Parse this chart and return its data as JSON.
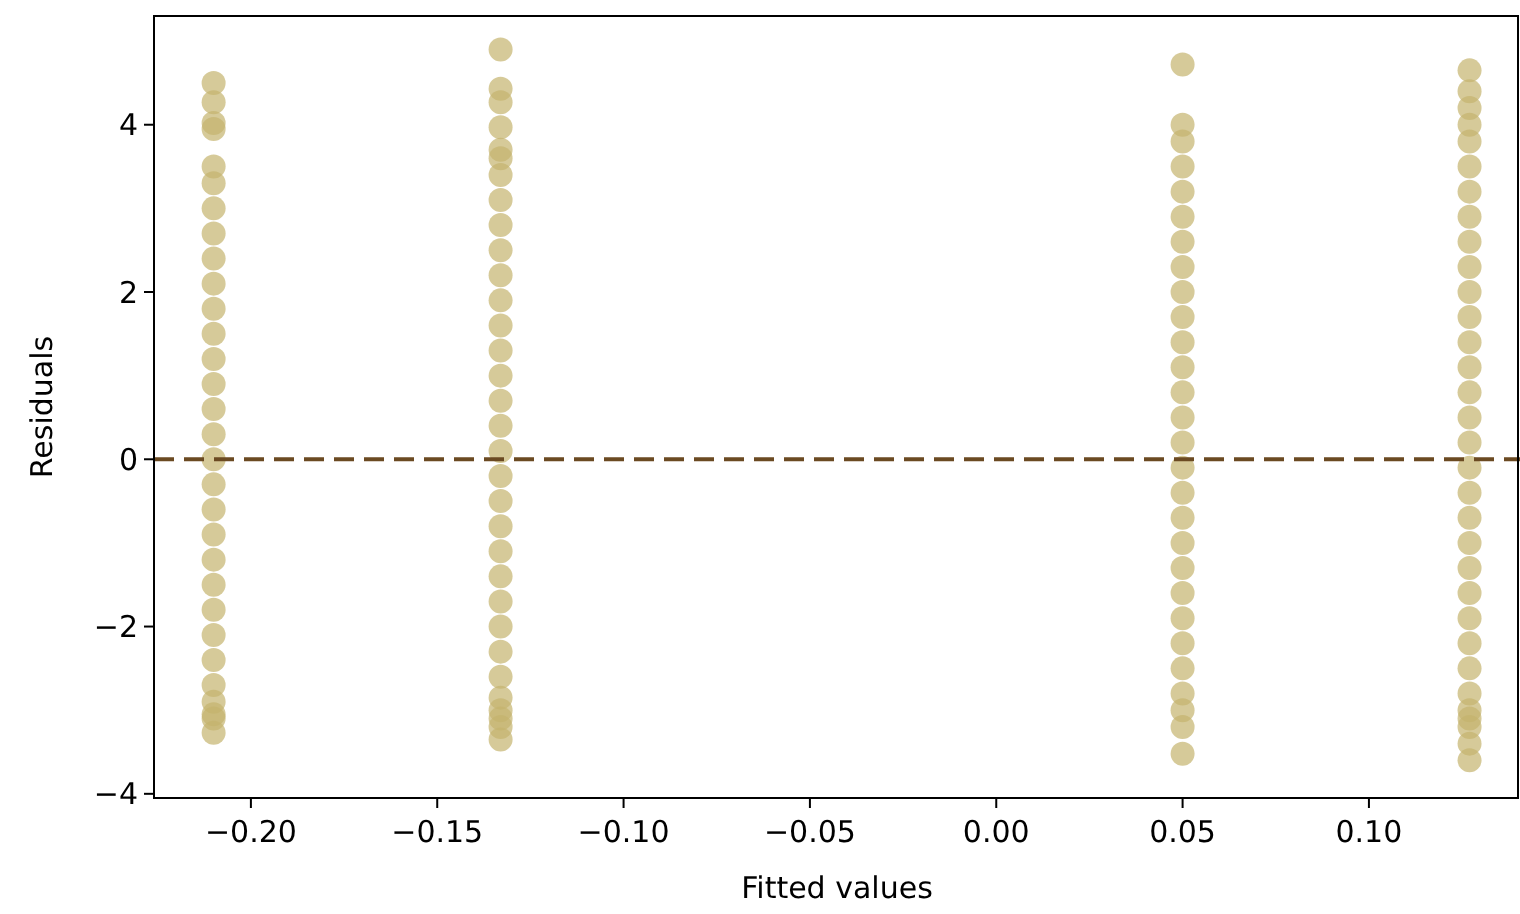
{
  "chart_data": {
    "type": "scatter",
    "xlabel": "Fitted values",
    "ylabel": "Residuals",
    "xlim": [
      -0.226,
      0.14
    ],
    "ylim": [
      -4.05,
      5.3
    ],
    "xticks": [
      {
        "value": -0.2,
        "label": "−0.20"
      },
      {
        "value": -0.15,
        "label": "−0.15"
      },
      {
        "value": -0.1,
        "label": "−0.10"
      },
      {
        "value": -0.05,
        "label": "−0.05"
      },
      {
        "value": 0,
        "label": "0.00"
      },
      {
        "value": 0.05,
        "label": "0.05"
      },
      {
        "value": 0.1,
        "label": "0.10"
      }
    ],
    "yticks": [
      {
        "value": -4,
        "label": "−4"
      },
      {
        "value": -2,
        "label": "−2"
      },
      0,
      2,
      4
    ],
    "grid": false,
    "marker": "circle",
    "ref_lines": [
      {
        "axis": "y",
        "value": 0,
        "color": "#6b4a22",
        "line_style": "dashed"
      }
    ],
    "series": [
      {
        "color": "#c5b46e",
        "x": [
          -0.21,
          -0.21,
          -0.21,
          -0.21,
          -0.21,
          -0.21,
          -0.21,
          -0.21,
          -0.21,
          -0.21,
          -0.21,
          -0.21,
          -0.21,
          -0.21,
          -0.21,
          -0.21,
          -0.21,
          -0.21,
          -0.21,
          -0.21,
          -0.21,
          -0.21,
          -0.21,
          -0.21,
          -0.21,
          -0.21,
          -0.21,
          -0.21,
          -0.21,
          -0.21,
          -0.133,
          -0.133,
          -0.133,
          -0.133,
          -0.133,
          -0.133,
          -0.133,
          -0.133,
          -0.133,
          -0.133,
          -0.133,
          -0.133,
          -0.133,
          -0.133,
          -0.133,
          -0.133,
          -0.133,
          -0.133,
          -0.133,
          -0.133,
          -0.133,
          -0.133,
          -0.133,
          -0.133,
          -0.133,
          -0.133,
          -0.133,
          -0.133,
          -0.133,
          -0.133,
          -0.133,
          -0.133,
          0.05,
          0.05,
          0.05,
          0.05,
          0.05,
          0.05,
          0.05,
          0.05,
          0.05,
          0.05,
          0.05,
          0.05,
          0.05,
          0.05,
          0.05,
          0.05,
          0.05,
          0.05,
          0.05,
          0.05,
          0.05,
          0.05,
          0.05,
          0.05,
          0.05,
          0.05,
          0.05,
          0.05,
          0.127,
          0.127,
          0.127,
          0.127,
          0.127,
          0.127,
          0.127,
          0.127,
          0.127,
          0.127,
          0.127,
          0.127,
          0.127,
          0.127,
          0.127,
          0.127,
          0.127,
          0.127,
          0.127,
          0.127,
          0.127,
          0.127,
          0.127,
          0.127,
          0.127,
          0.127,
          0.127,
          0.127,
          0.127,
          0.127,
          0.127,
          0.127
        ],
        "values": [
          4.5,
          4.27,
          4.02,
          3.95,
          3.5,
          3.3,
          3.0,
          2.7,
          2.4,
          2.1,
          1.8,
          1.5,
          1.2,
          0.9,
          0.6,
          0.3,
          0.0,
          -0.3,
          -0.6,
          -0.9,
          -1.2,
          -1.5,
          -1.8,
          -2.1,
          -2.4,
          -2.7,
          -2.9,
          -3.05,
          -3.1,
          -3.27,
          4.9,
          4.43,
          4.27,
          3.97,
          3.7,
          3.6,
          3.4,
          3.1,
          2.8,
          2.5,
          2.2,
          1.9,
          1.6,
          1.3,
          1.0,
          0.7,
          0.4,
          0.1,
          -0.2,
          -0.5,
          -0.8,
          -1.1,
          -1.4,
          -1.7,
          -2.0,
          -2.3,
          -2.6,
          -2.85,
          -3.0,
          -3.1,
          -3.2,
          -3.35,
          4.72,
          4.0,
          3.8,
          3.5,
          3.2,
          2.9,
          2.6,
          2.3,
          2.0,
          1.7,
          1.4,
          1.1,
          0.8,
          0.5,
          0.2,
          -0.1,
          -0.4,
          -0.7,
          -1.0,
          -1.3,
          -1.6,
          -1.9,
          -2.2,
          -2.5,
          -2.8,
          -3.0,
          -3.2,
          -3.52,
          4.65,
          4.4,
          4.2,
          4.0,
          3.8,
          3.5,
          3.2,
          2.9,
          2.6,
          2.3,
          2.0,
          1.7,
          1.4,
          1.1,
          0.8,
          0.5,
          0.2,
          -0.1,
          -0.4,
          -0.7,
          -1.0,
          -1.3,
          -1.6,
          -1.9,
          -2.2,
          -2.5,
          -2.8,
          -3.0,
          -3.1,
          -3.2,
          -3.4,
          -3.6
        ]
      }
    ]
  }
}
